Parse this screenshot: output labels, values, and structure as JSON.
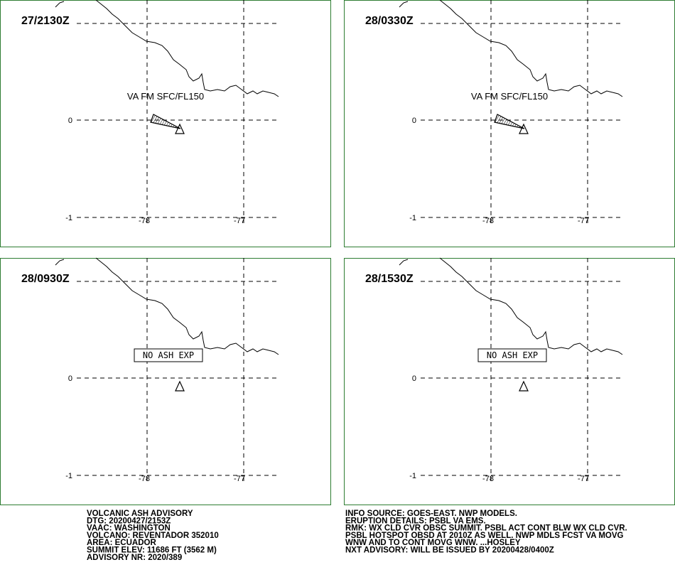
{
  "panels": [
    {
      "time": "27/2130Z",
      "annotation": "VA FM SFC/FL150"
    },
    {
      "time": "28/0330Z",
      "annotation": "VA FM SFC/FL150"
    },
    {
      "time": "28/0930Z",
      "annotation": "NO ASH EXP"
    },
    {
      "time": "28/1530Z",
      "annotation": "NO ASH EXP"
    }
  ],
  "lat_labels": [
    "0",
    "-1"
  ],
  "lon_labels": [
    "-78",
    "-77"
  ],
  "advisory_left": [
    "VOLCANIC ASH ADVISORY",
    "DTG: 20200427/2153Z",
    "VAAC: WASHINGTON",
    "VOLCANO: REVENTADOR 352010",
    "AREA: ECUADOR",
    "SUMMIT ELEV: 11686 FT (3562 M)",
    "ADVISORY NR: 2020/389"
  ],
  "advisory_right": [
    "INFO SOURCE: GOES-EAST. NWP MODELS.",
    "ERUPTION DETAILS: PSBL VA EMS.",
    "RMK: WX CLD CVR OBSC SUMMIT. PSBL ACT CONT BLW WX CLD CVR.",
    "PSBL HOTSPOT OBSD AT 2010Z AS WELL. NWP MDLS FCST VA MOVG",
    "WNW AND TO CONT MOVG WNW. ...HOSLEY",
    "NXT ADVISORY: WILL BE ISSUED BY 20200428/0400Z"
  ]
}
